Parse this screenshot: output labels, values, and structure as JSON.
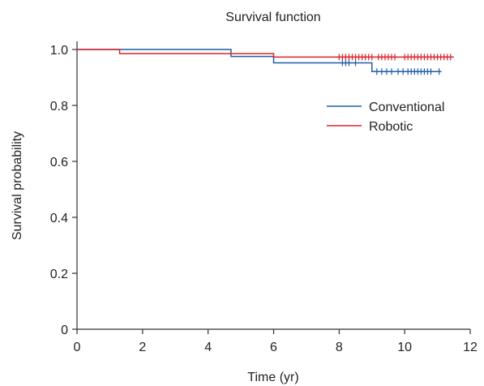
{
  "chart_data": {
    "type": "line",
    "step": true,
    "title": "Survival function",
    "xlabel": "Time (yr)",
    "ylabel": "Survival probability",
    "xlim": [
      0,
      12
    ],
    "ylim": [
      0,
      1.0
    ],
    "xticks": [
      0,
      2,
      4,
      6,
      8,
      10,
      12
    ],
    "xtick_labels": [
      "0",
      "2",
      "4",
      "6",
      "8",
      "10",
      "12"
    ],
    "yticks": [
      0,
      0.2,
      0.4,
      0.6,
      0.8,
      1.0
    ],
    "ytick_labels": [
      "0",
      "0.2",
      "0.4",
      "0.6",
      "0.8",
      "1.0"
    ],
    "grid": false,
    "legend_position": "top-right",
    "series": [
      {
        "name": "Conventional",
        "color": "#1f5fa8",
        "steps": [
          [
            0,
            1.0
          ],
          [
            4.7,
            0.975
          ],
          [
            6.0,
            0.952
          ],
          [
            9.0,
            0.921
          ],
          [
            11.1,
            0.921
          ]
        ],
        "censored": [
          [
            8.1,
            0.952
          ],
          [
            8.2,
            0.952
          ],
          [
            8.3,
            0.952
          ],
          [
            8.5,
            0.952
          ],
          [
            9.15,
            0.921
          ],
          [
            9.3,
            0.921
          ],
          [
            9.45,
            0.921
          ],
          [
            9.6,
            0.921
          ],
          [
            9.8,
            0.921
          ],
          [
            9.95,
            0.921
          ],
          [
            10.1,
            0.921
          ],
          [
            10.2,
            0.921
          ],
          [
            10.3,
            0.921
          ],
          [
            10.4,
            0.921
          ],
          [
            10.5,
            0.921
          ],
          [
            10.6,
            0.921
          ],
          [
            10.7,
            0.921
          ],
          [
            10.8,
            0.921
          ],
          [
            11.05,
            0.921
          ]
        ]
      },
      {
        "name": "Robotic",
        "color": "#d9252b",
        "steps": [
          [
            0,
            1.0
          ],
          [
            1.3,
            0.985
          ],
          [
            6.0,
            0.973
          ],
          [
            11.5,
            0.973
          ]
        ],
        "censored": [
          [
            8.0,
            0.973
          ],
          [
            8.1,
            0.973
          ],
          [
            8.2,
            0.973
          ],
          [
            8.3,
            0.973
          ],
          [
            8.4,
            0.973
          ],
          [
            8.5,
            0.973
          ],
          [
            8.6,
            0.973
          ],
          [
            8.7,
            0.973
          ],
          [
            8.8,
            0.973
          ],
          [
            8.9,
            0.973
          ],
          [
            9.0,
            0.973
          ],
          [
            9.2,
            0.973
          ],
          [
            9.3,
            0.973
          ],
          [
            9.4,
            0.973
          ],
          [
            9.5,
            0.973
          ],
          [
            9.6,
            0.973
          ],
          [
            9.7,
            0.973
          ],
          [
            10.0,
            0.973
          ],
          [
            10.1,
            0.973
          ],
          [
            10.2,
            0.973
          ],
          [
            10.3,
            0.973
          ],
          [
            10.4,
            0.973
          ],
          [
            10.5,
            0.973
          ],
          [
            10.6,
            0.973
          ],
          [
            10.7,
            0.973
          ],
          [
            10.8,
            0.973
          ],
          [
            10.9,
            0.973
          ],
          [
            11.0,
            0.973
          ],
          [
            11.1,
            0.973
          ],
          [
            11.2,
            0.973
          ],
          [
            11.3,
            0.973
          ],
          [
            11.4,
            0.973
          ]
        ]
      }
    ]
  }
}
